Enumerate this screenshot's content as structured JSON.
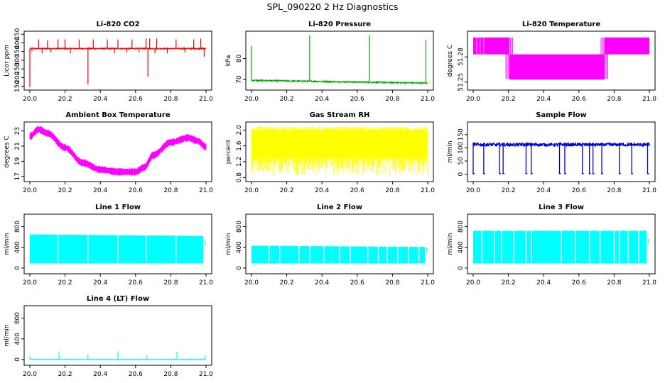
{
  "figure_title": "SPL_090220  2 Hz Diagnostics",
  "chart_data": [
    {
      "type": "line",
      "title": "Li-820 CO2",
      "xlabel": "",
      "ylabel": "Licor ppm",
      "xlim": [
        20.0,
        21.0
      ],
      "ylim": [
        140,
        455
      ],
      "xticks": [
        "20.0",
        "20.2",
        "20.4",
        "20.6",
        "20.8",
        "21.0"
      ],
      "yticks": [
        {
          "v": 150,
          "t": "150"
        },
        {
          "v": 200,
          "t": "200"
        },
        {
          "v": 250,
          "t": "250"
        },
        {
          "v": 300,
          "t": "300"
        },
        {
          "v": 350,
          "t": "350"
        },
        {
          "v": 400,
          "t": "400"
        },
        {
          "v": 450,
          "t": "450"
        }
      ],
      "color": "#ff0000",
      "style": "line",
      "base": 367,
      "noise": 3,
      "spikes": [
        {
          "x": 20.0,
          "v": 145
        },
        {
          "x": 20.012,
          "v": 350
        },
        {
          "x": 20.05,
          "v": 420
        },
        {
          "x": 20.07,
          "v": 340
        },
        {
          "x": 20.1,
          "v": 415
        },
        {
          "x": 20.12,
          "v": 345
        },
        {
          "x": 20.16,
          "v": 420
        },
        {
          "x": 20.2,
          "v": 420
        },
        {
          "x": 20.23,
          "v": 340
        },
        {
          "x": 20.28,
          "v": 420
        },
        {
          "x": 20.33,
          "v": 160
        },
        {
          "x": 20.36,
          "v": 420
        },
        {
          "x": 20.44,
          "v": 420
        },
        {
          "x": 20.48,
          "v": 340
        },
        {
          "x": 20.5,
          "v": 420
        },
        {
          "x": 20.55,
          "v": 345
        },
        {
          "x": 20.58,
          "v": 420
        },
        {
          "x": 20.62,
          "v": 345
        },
        {
          "x": 20.66,
          "v": 425
        },
        {
          "x": 20.67,
          "v": 205
        },
        {
          "x": 20.68,
          "v": 425
        },
        {
          "x": 20.71,
          "v": 340
        },
        {
          "x": 20.72,
          "v": 425
        },
        {
          "x": 20.78,
          "v": 340
        },
        {
          "x": 20.83,
          "v": 420
        },
        {
          "x": 20.88,
          "v": 345
        },
        {
          "x": 20.93,
          "v": 420
        },
        {
          "x": 20.97,
          "v": 425
        },
        {
          "x": 20.99,
          "v": 320
        }
      ]
    },
    {
      "type": "line",
      "title": "Li-820 Pressure",
      "xlabel": "",
      "ylabel": "kPa",
      "xlim": [
        20.0,
        21.0
      ],
      "ylim": [
        66,
        92
      ],
      "xticks": [
        "20.0",
        "20.2",
        "20.4",
        "20.6",
        "20.8",
        "21.0"
      ],
      "yticks": [
        {
          "v": 70,
          "t": "70"
        },
        {
          "v": 80,
          "t": "80"
        }
      ],
      "color": "#00b000",
      "style": "line",
      "base_start": 69.6,
      "base_end": 68.3,
      "noise": 0.3,
      "spikes": [
        {
          "x": 20.0,
          "v": 86
        },
        {
          "x": 20.33,
          "v": 91
        },
        {
          "x": 20.67,
          "v": 91
        },
        {
          "x": 20.99,
          "v": 89
        }
      ]
    },
    {
      "type": "line",
      "title": "Li-820 Temperature",
      "xlabel": "",
      "ylabel": "degrees C",
      "xlim": [
        20.0,
        21.0
      ],
      "ylim": [
        51.243,
        51.308
      ],
      "xticks": [
        "20.0",
        "20.2",
        "20.4",
        "20.6",
        "20.8",
        "21.0"
      ],
      "yticks": [
        {
          "v": 51.25,
          "t": "51.25"
        },
        {
          "v": 51.28,
          "t": "51.28"
        }
      ],
      "color": "#ff00ff",
      "style": "step-band",
      "bands": [
        {
          "x0": 20.0,
          "x1": 20.205,
          "lo": 51.283,
          "hi": 51.303
        },
        {
          "x0": 20.205,
          "x1": 20.745,
          "lo": 51.253,
          "hi": 51.283
        },
        {
          "x0": 20.745,
          "x1": 21.0,
          "lo": 51.283,
          "hi": 51.303
        }
      ]
    },
    {
      "type": "line",
      "title": "Ambient Box Temperature",
      "xlabel": "",
      "ylabel": "degrees C",
      "xlim": [
        20.0,
        21.0
      ],
      "ylim": [
        16.6,
        23.9
      ],
      "xticks": [
        "20.0",
        "20.2",
        "20.4",
        "20.6",
        "20.8",
        "21.0"
      ],
      "yticks": [
        {
          "v": 17,
          "t": "17"
        },
        {
          "v": 19,
          "t": "19"
        },
        {
          "v": 21,
          "t": "21"
        },
        {
          "v": 23,
          "t": "23"
        }
      ],
      "color": "#ff00ff",
      "style": "band-curve",
      "band": 0.7,
      "curve": [
        [
          20.0,
          22.3
        ],
        [
          20.05,
          23.2
        ],
        [
          20.1,
          22.7
        ],
        [
          20.2,
          20.8
        ],
        [
          20.3,
          18.8
        ],
        [
          20.4,
          17.9
        ],
        [
          20.5,
          17.6
        ],
        [
          20.6,
          17.6
        ],
        [
          20.65,
          18.2
        ],
        [
          20.7,
          19.8
        ],
        [
          20.8,
          21.5
        ],
        [
          20.9,
          22.1
        ],
        [
          20.95,
          21.7
        ],
        [
          21.0,
          20.9
        ]
      ]
    },
    {
      "type": "line",
      "title": "Gas Stream RH",
      "xlabel": "",
      "ylabel": "percent",
      "xlim": [
        20.0,
        21.0
      ],
      "ylim": [
        0.75,
        2.15
      ],
      "xticks": [
        "20.0",
        "20.2",
        "20.4",
        "20.6",
        "20.8",
        "21.0"
      ],
      "yticks": [
        {
          "v": 0.8,
          "t": "0.8"
        },
        {
          "v": 1.2,
          "t": "1.2"
        },
        {
          "v": 1.6,
          "t": "1.6"
        },
        {
          "v": 2.0,
          "t": "2.0"
        }
      ],
      "color": "#ffff00",
      "style": "fill",
      "lo": 1.3,
      "hi": 2.0,
      "lo_min": 0.85,
      "hi_max": 2.1
    },
    {
      "type": "line",
      "title": "Sample Flow",
      "xlabel": "",
      "ylabel": "ml/min",
      "xlim": [
        20.0,
        21.0
      ],
      "ylim": [
        -20,
        190
      ],
      "xticks": [
        "20.0",
        "20.2",
        "20.4",
        "20.6",
        "20.8",
        "21.0"
      ],
      "yticks": [
        {
          "v": 0,
          "t": "0"
        },
        {
          "v": 50,
          "t": "50"
        },
        {
          "v": 100,
          "t": "100"
        },
        {
          "v": 150,
          "t": "150"
        }
      ],
      "color": "#0000dd",
      "style": "line",
      "base": 112,
      "noise": 6,
      "dips": [
        20.0,
        20.06,
        20.15,
        20.17,
        20.3,
        20.33,
        20.49,
        20.52,
        20.62,
        20.66,
        20.68,
        20.73,
        20.83,
        20.9,
        20.99
      ],
      "dip_value": 2
    },
    {
      "type": "area",
      "title": "Line 1 Flow",
      "xlabel": "",
      "ylabel": "ml/min",
      "xlim": [
        20.0,
        21.0
      ],
      "ylim": [
        -70,
        1000
      ],
      "xticks": [
        "20.0",
        "20.2",
        "20.4",
        "20.6",
        "20.8",
        "21.0"
      ],
      "yticks": [
        {
          "v": 0,
          "t": "0"
        },
        {
          "v": 400,
          "t": "400"
        },
        {
          "v": 800,
          "t": "800"
        }
      ],
      "color": "#00ffff",
      "style": "fill",
      "lo": 90,
      "hi": 650,
      "hi_end": 620,
      "gaps": [
        20.16,
        20.33,
        20.5,
        20.66,
        20.83
      ],
      "last_x": 20.995,
      "last_hi": 520
    },
    {
      "type": "area",
      "title": "Line 2 Flow",
      "xlabel": "",
      "ylabel": "ml/min",
      "xlim": [
        20.0,
        21.0
      ],
      "ylim": [
        -70,
        1000
      ],
      "xticks": [
        "20.0",
        "20.2",
        "20.4",
        "20.6",
        "20.8",
        "21.0"
      ],
      "yticks": [
        {
          "v": 0,
          "t": "0"
        },
        {
          "v": 400,
          "t": "400"
        },
        {
          "v": 800,
          "t": "800"
        }
      ],
      "color": "#00ffff",
      "style": "fill",
      "lo": 90,
      "hi": 430,
      "hi_end": 410,
      "gaps": [
        20.1,
        20.16,
        20.27,
        20.33,
        20.41,
        20.5,
        20.56,
        20.66,
        20.72,
        20.77,
        20.83,
        20.89,
        20.95
      ],
      "last_x": 20.995,
      "last_hi": 390
    },
    {
      "type": "area",
      "title": "Line 3 Flow",
      "xlabel": "",
      "ylabel": "ml/min",
      "xlim": [
        20.0,
        21.0
      ],
      "ylim": [
        -70,
        1000
      ],
      "xticks": [
        "20.0",
        "20.2",
        "20.4",
        "20.6",
        "20.8",
        "21.0"
      ],
      "yticks": [
        {
          "v": 0,
          "t": "0"
        },
        {
          "v": 400,
          "t": "400"
        },
        {
          "v": 800,
          "t": "800"
        }
      ],
      "color": "#00ffff",
      "style": "fill",
      "lo": 90,
      "hi": 720,
      "hi_end": 720,
      "gaps": [
        20.05,
        20.12,
        20.16,
        20.23,
        20.3,
        20.33,
        20.5,
        20.58,
        20.66,
        20.72,
        20.8,
        20.83,
        20.88,
        20.94
      ],
      "last_x": 20.995,
      "last_hi": 560
    },
    {
      "type": "line",
      "title": "Line 4 (LT) Flow",
      "xlabel": "",
      "ylabel": "ml/min",
      "xlim": [
        20.0,
        21.0
      ],
      "ylim": [
        -70,
        1000
      ],
      "xticks": [
        "20.0",
        "20.2",
        "20.4",
        "20.6",
        "20.8",
        "21.0"
      ],
      "yticks": [
        {
          "v": 0,
          "t": "0"
        },
        {
          "v": 400,
          "t": "400"
        },
        {
          "v": 800,
          "t": "800"
        }
      ],
      "color": "#00ffff",
      "style": "line",
      "base": 5,
      "noise": 4,
      "spikes": [
        {
          "x": 20.0,
          "v": 60
        },
        {
          "x": 20.165,
          "v": 160
        },
        {
          "x": 20.33,
          "v": 90
        },
        {
          "x": 20.5,
          "v": 160
        },
        {
          "x": 20.665,
          "v": 80
        },
        {
          "x": 20.835,
          "v": 150
        },
        {
          "x": 20.995,
          "v": 80
        }
      ]
    }
  ]
}
